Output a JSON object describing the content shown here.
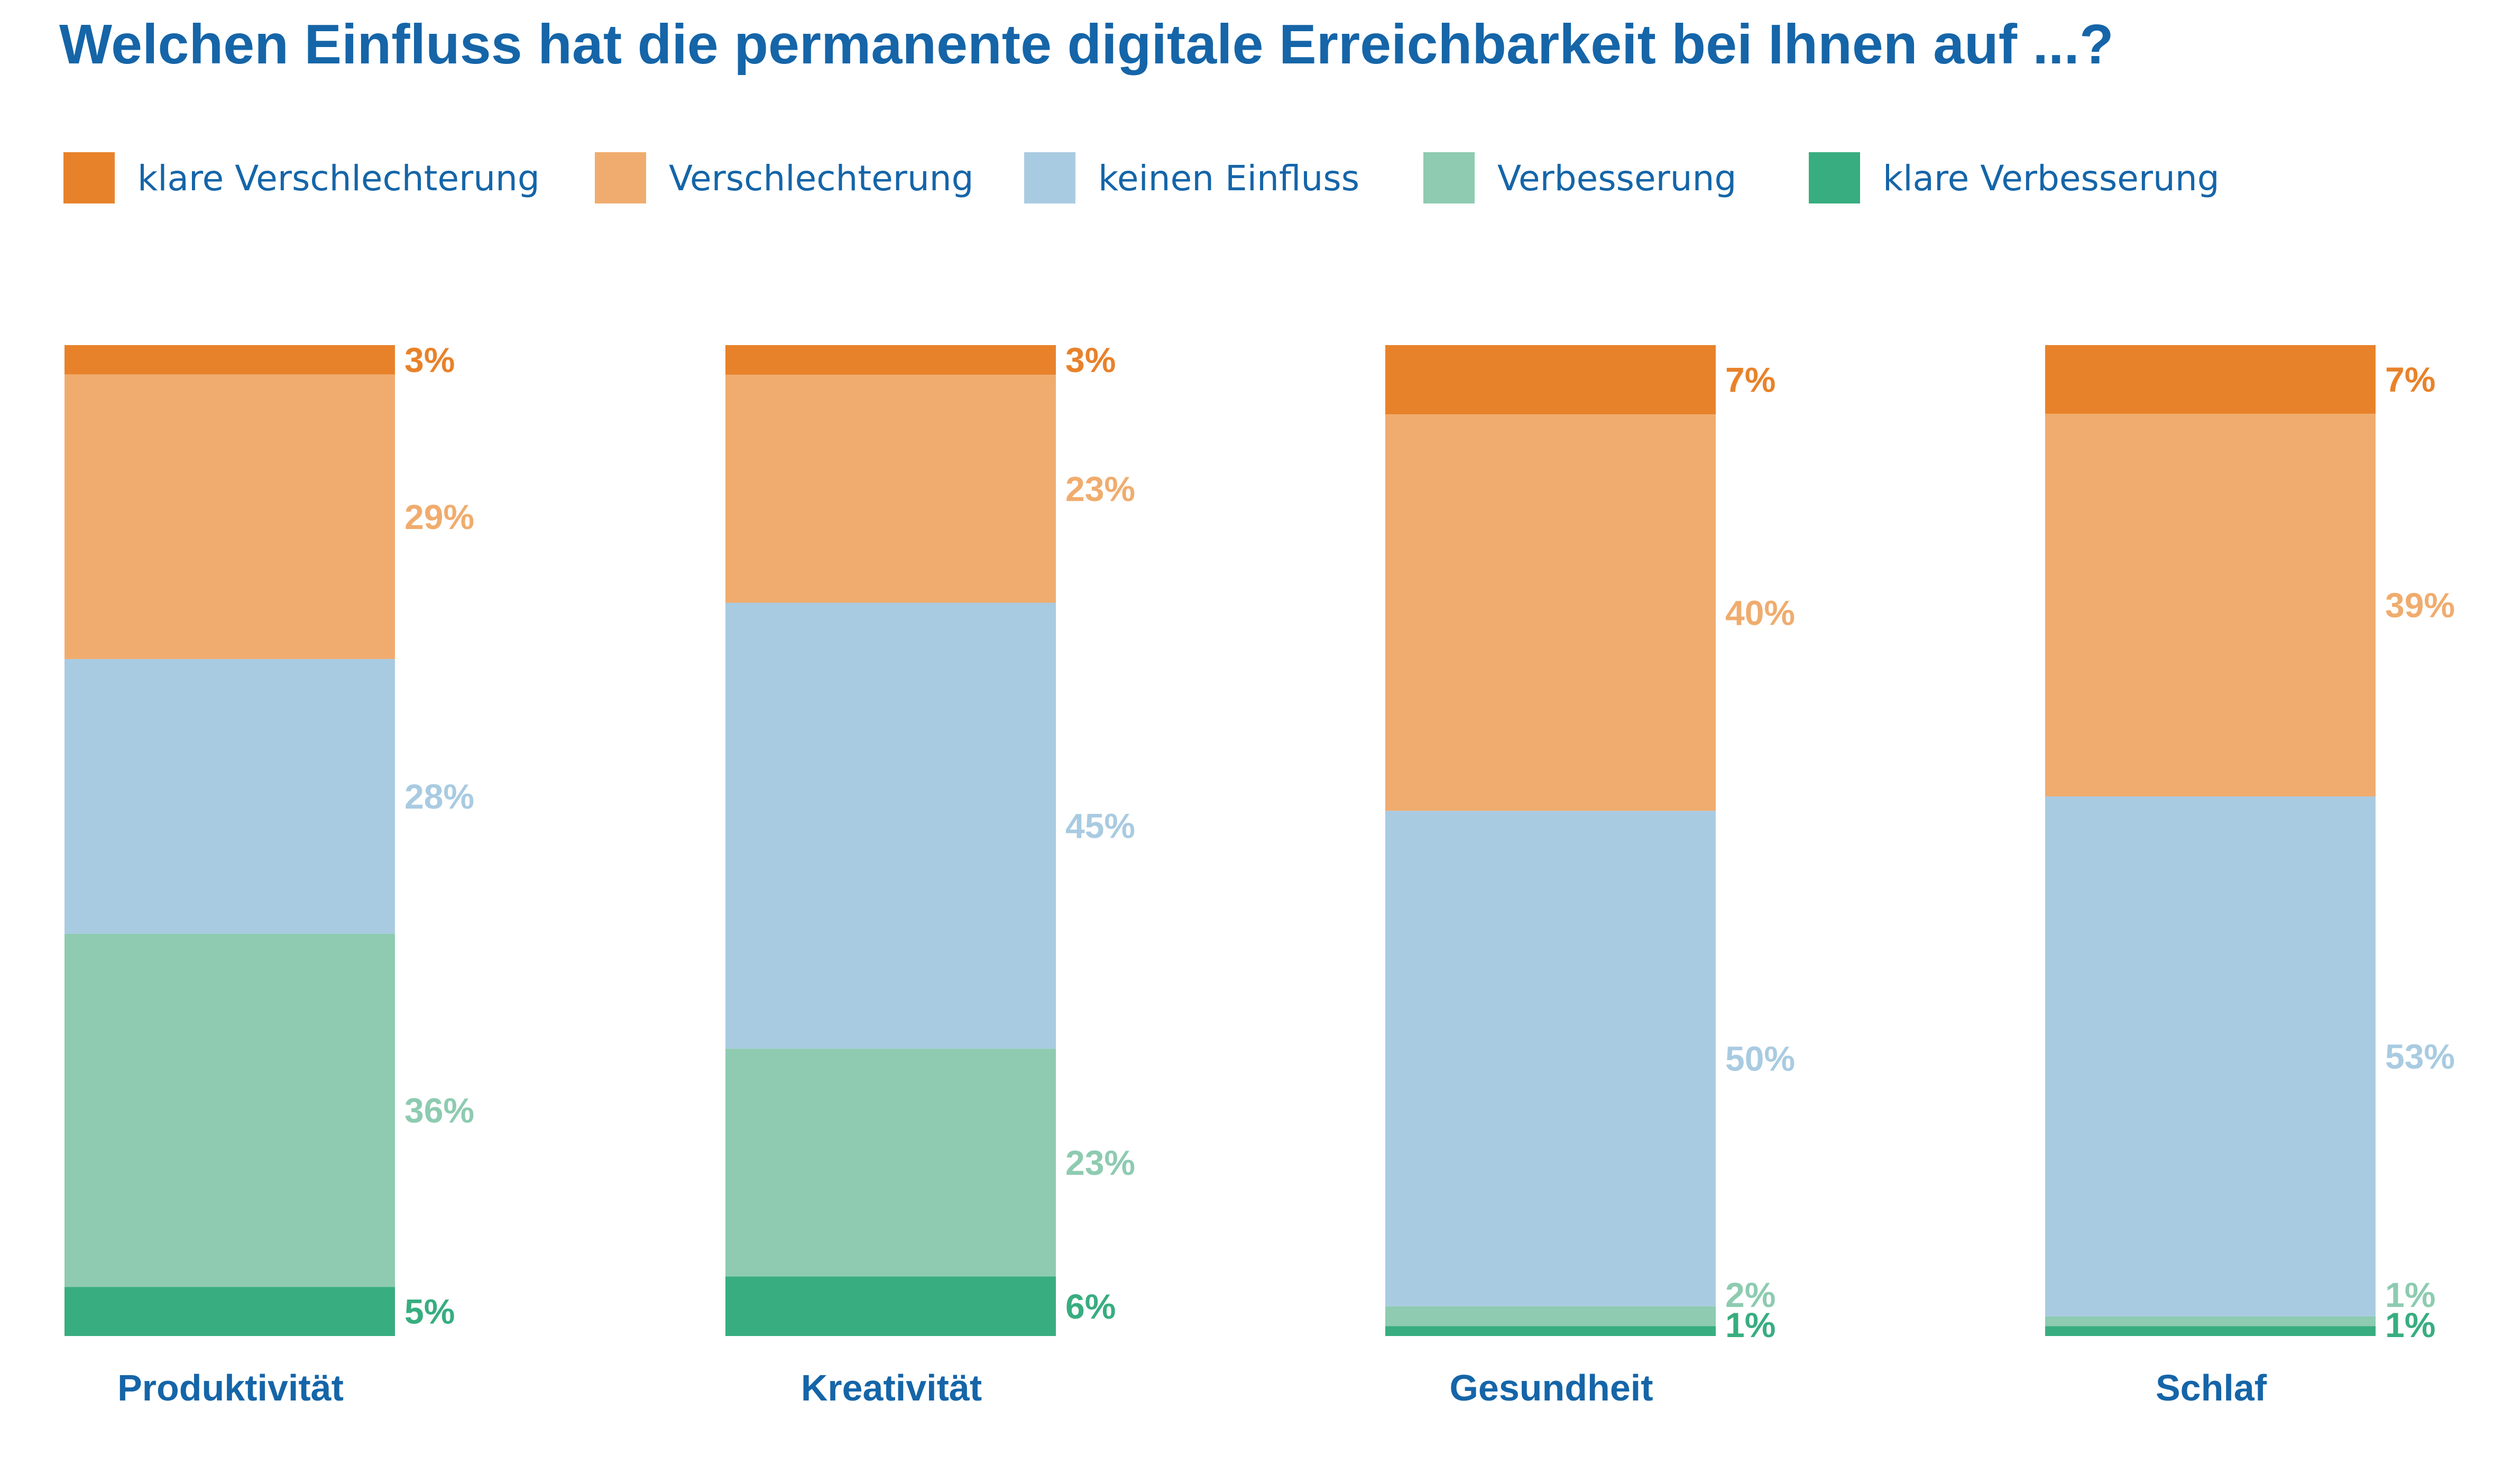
{
  "colors": {
    "title": "#1565a8",
    "text": "#1565a8"
  },
  "chart_data": {
    "type": "bar",
    "stacked": true,
    "normalized": true,
    "title": "Welchen Einfluss hat die permanente digitale Erreichbarkeit bei Ihnen auf ...?",
    "categories": [
      "Produktivität",
      "Kreativität",
      "Gesundheit",
      "Schlaf"
    ],
    "legend_position": "top-left",
    "grid": false,
    "series": [
      {
        "name": "klare Verschlechterung",
        "color": "#e8822a",
        "values": [
          3,
          3,
          7,
          7
        ]
      },
      {
        "name": "Verschlechterung",
        "color": "#f0ac6e",
        "values": [
          29,
          23,
          40,
          39
        ]
      },
      {
        "name": "keinen Einfluss",
        "color": "#a9cbe1",
        "values": [
          28,
          45,
          50,
          53
        ]
      },
      {
        "name": "Verbesserung",
        "color": "#8ecbb1",
        "values": [
          36,
          23,
          2,
          1
        ]
      },
      {
        "name": "klare Verbesserung",
        "color": "#38ad80",
        "values": [
          5,
          6,
          1,
          1
        ]
      }
    ],
    "value_labels": [
      [
        "3%",
        "29%",
        "28%",
        "36%",
        "5%"
      ],
      [
        "3%",
        "23%",
        "45%",
        "23%",
        "6%"
      ],
      [
        "7%",
        "40%",
        "50%",
        "2%",
        "1%"
      ],
      [
        "7%",
        "39%",
        "53%",
        "1%",
        "1%"
      ]
    ]
  }
}
